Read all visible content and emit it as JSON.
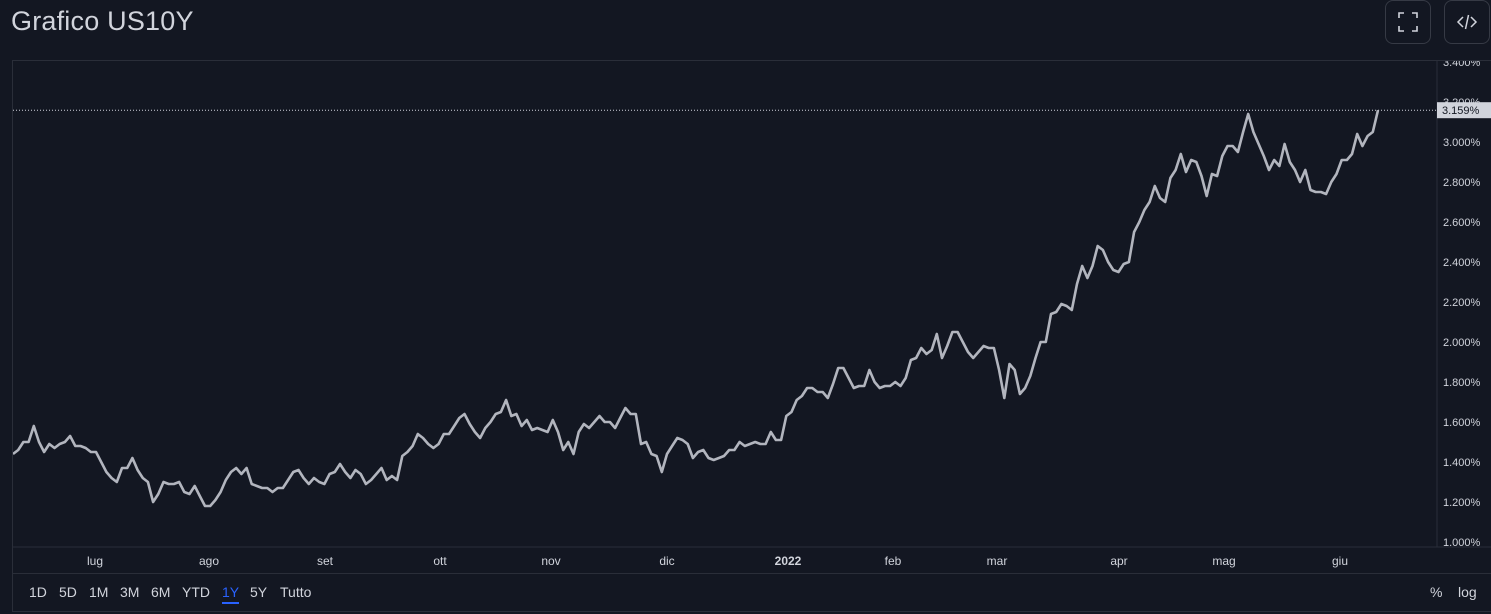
{
  "header": {
    "title": "Grafico US10Y",
    "fullscreen_icon": "fullscreen-icon",
    "embed_icon": "code-embed-icon"
  },
  "toolbar": {
    "ranges": [
      "1D",
      "5D",
      "1M",
      "3M",
      "6M",
      "YTD",
      "1Y",
      "5Y",
      "Tutto"
    ],
    "active_range": "1Y",
    "percent_label": "%",
    "log_label": "log"
  },
  "colors": {
    "background": "#131722",
    "line": "#b2b5be",
    "grid_border": "#2a2e39",
    "accent": "#2962ff",
    "price_label_bg": "#d1d4dc"
  },
  "chart_data": {
    "type": "line",
    "title": "",
    "xlabel": "",
    "ylabel": "",
    "ylim": [
      1.0,
      3.4
    ],
    "y_ticks": [
      "1.000%",
      "1.200%",
      "1.400%",
      "1.600%",
      "1.800%",
      "2.000%",
      "2.200%",
      "2.400%",
      "2.600%",
      "2.800%",
      "3.000%",
      "3.200%",
      "3.400%"
    ],
    "x_ticks": [
      "lug",
      "ago",
      "set",
      "ott",
      "nov",
      "dic",
      "2022",
      "feb",
      "mar",
      "apr",
      "mag",
      "giu"
    ],
    "last_value_label": "3.159%",
    "last_value": 3.159,
    "grid": false,
    "series": [
      {
        "values": [
          1.44,
          1.46,
          1.5,
          1.5,
          1.58,
          1.5,
          1.45,
          1.49,
          1.47,
          1.49,
          1.5,
          1.53,
          1.48,
          1.48,
          1.47,
          1.45,
          1.45,
          1.4,
          1.35,
          1.32,
          1.3,
          1.37,
          1.37,
          1.42,
          1.36,
          1.32,
          1.3,
          1.2,
          1.24,
          1.3,
          1.29,
          1.29,
          1.3,
          1.25,
          1.24,
          1.28,
          1.23,
          1.18,
          1.18,
          1.21,
          1.25,
          1.31,
          1.35,
          1.37,
          1.34,
          1.37,
          1.29,
          1.28,
          1.27,
          1.27,
          1.25,
          1.27,
          1.27,
          1.31,
          1.35,
          1.36,
          1.32,
          1.29,
          1.32,
          1.3,
          1.29,
          1.34,
          1.35,
          1.39,
          1.35,
          1.32,
          1.36,
          1.34,
          1.29,
          1.31,
          1.34,
          1.37,
          1.31,
          1.33,
          1.31,
          1.43,
          1.45,
          1.48,
          1.54,
          1.52,
          1.49,
          1.47,
          1.49,
          1.54,
          1.54,
          1.58,
          1.62,
          1.64,
          1.59,
          1.55,
          1.52,
          1.57,
          1.6,
          1.64,
          1.65,
          1.71,
          1.63,
          1.64,
          1.58,
          1.61,
          1.56,
          1.57,
          1.56,
          1.55,
          1.61,
          1.55,
          1.46,
          1.5,
          1.44,
          1.55,
          1.59,
          1.57,
          1.6,
          1.63,
          1.6,
          1.6,
          1.57,
          1.62,
          1.67,
          1.64,
          1.64,
          1.49,
          1.5,
          1.44,
          1.43,
          1.35,
          1.44,
          1.48,
          1.52,
          1.51,
          1.49,
          1.42,
          1.45,
          1.46,
          1.42,
          1.41,
          1.42,
          1.43,
          1.46,
          1.46,
          1.5,
          1.48,
          1.49,
          1.5,
          1.49,
          1.49,
          1.55,
          1.51,
          1.51,
          1.63,
          1.65,
          1.71,
          1.73,
          1.77,
          1.77,
          1.75,
          1.75,
          1.72,
          1.79,
          1.87,
          1.87,
          1.82,
          1.77,
          1.78,
          1.78,
          1.86,
          1.8,
          1.77,
          1.78,
          1.78,
          1.8,
          1.78,
          1.82,
          1.91,
          1.92,
          1.97,
          1.94,
          1.96,
          2.04,
          1.92,
          1.98,
          2.05,
          2.05,
          2.0,
          1.95,
          1.92,
          1.95,
          1.98,
          1.97,
          1.97,
          1.86,
          1.72,
          1.89,
          1.86,
          1.74,
          1.77,
          1.83,
          1.92,
          2.0,
          2.0,
          2.14,
          2.15,
          2.19,
          2.18,
          2.16,
          2.29,
          2.38,
          2.32,
          2.38,
          2.48,
          2.46,
          2.4,
          2.36,
          2.35,
          2.39,
          2.4,
          2.55,
          2.6,
          2.66,
          2.7,
          2.78,
          2.72,
          2.7,
          2.82,
          2.86,
          2.94,
          2.85,
          2.91,
          2.9,
          2.83,
          2.73,
          2.84,
          2.83,
          2.93,
          2.98,
          2.98,
          2.95,
          3.05,
          3.14,
          3.05,
          2.99,
          2.93,
          2.86,
          2.91,
          2.88,
          2.99,
          2.9,
          2.86,
          2.8,
          2.86,
          2.76,
          2.75,
          2.75,
          2.74,
          2.8,
          2.84,
          2.91,
          2.91,
          2.94,
          3.04,
          2.98,
          3.03,
          3.05,
          3.159
        ]
      }
    ]
  }
}
